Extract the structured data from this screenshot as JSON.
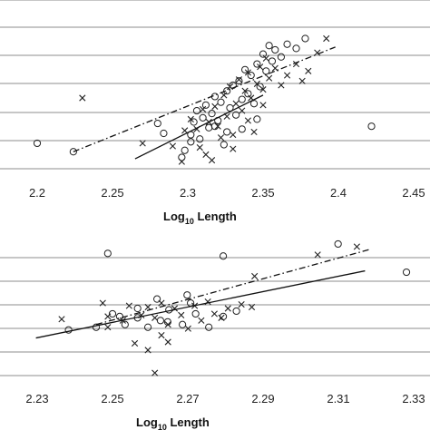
{
  "chart_data": [
    {
      "type": "scatter",
      "xlabel_main": "Log",
      "xlabel_sub": "10",
      "xlabel_rest": " Length",
      "xlim": [
        2.2,
        2.45
      ],
      "x_ticks": [
        "2.2",
        "2.25",
        "2.3",
        "2.35",
        "2.4",
        "2.45"
      ],
      "grid": "horizontal",
      "series": [
        {
          "marker": "circle",
          "points": [
            [
              2.2,
              0.18
            ],
            [
              2.224,
              0.12
            ],
            [
              2.28,
              0.32
            ],
            [
              2.284,
              0.25
            ],
            [
              2.296,
              0.08
            ],
            [
              2.298,
              0.13
            ],
            [
              2.302,
              0.24
            ],
            [
              2.304,
              0.33
            ],
            [
              2.306,
              0.41
            ],
            [
              2.308,
              0.21
            ],
            [
              2.31,
              0.36
            ],
            [
              2.312,
              0.45
            ],
            [
              2.314,
              0.29
            ],
            [
              2.316,
              0.39
            ],
            [
              2.318,
              0.51
            ],
            [
              2.32,
              0.34
            ],
            [
              2.322,
              0.47
            ],
            [
              2.324,
              0.17
            ],
            [
              2.326,
              0.55
            ],
            [
              2.328,
              0.43
            ],
            [
              2.33,
              0.59
            ],
            [
              2.332,
              0.38
            ],
            [
              2.334,
              0.62
            ],
            [
              2.336,
              0.49
            ],
            [
              2.338,
              0.7
            ],
            [
              2.34,
              0.53
            ],
            [
              2.342,
              0.66
            ],
            [
              2.344,
              0.46
            ],
            [
              2.346,
              0.74
            ],
            [
              2.348,
              0.58
            ],
            [
              2.35,
              0.81
            ],
            [
              2.352,
              0.69
            ],
            [
              2.354,
              0.87
            ],
            [
              2.356,
              0.76
            ],
            [
              2.358,
              0.84
            ],
            [
              2.362,
              0.79
            ],
            [
              2.366,
              0.88
            ],
            [
              2.372,
              0.85
            ],
            [
              2.378,
              0.92
            ],
            [
              2.318,
              0.3
            ],
            [
              2.336,
              0.28
            ],
            [
              2.346,
              0.35
            ],
            [
              2.302,
              0.19
            ],
            [
              2.326,
              0.26
            ],
            [
              2.422,
              0.3
            ]
          ]
        },
        {
          "marker": "x",
          "points": [
            [
              2.23,
              0.5
            ],
            [
              2.27,
              0.18
            ],
            [
              2.29,
              0.16
            ],
            [
              2.298,
              0.27
            ],
            [
              2.302,
              0.35
            ],
            [
              2.306,
              0.28
            ],
            [
              2.31,
              0.42
            ],
            [
              2.312,
              0.1
            ],
            [
              2.314,
              0.33
            ],
            [
              2.318,
              0.44
            ],
            [
              2.32,
              0.3
            ],
            [
              2.324,
              0.52
            ],
            [
              2.326,
              0.37
            ],
            [
              2.328,
              0.58
            ],
            [
              2.33,
              0.24
            ],
            [
              2.332,
              0.46
            ],
            [
              2.334,
              0.63
            ],
            [
              2.336,
              0.41
            ],
            [
              2.338,
              0.55
            ],
            [
              2.34,
              0.68
            ],
            [
              2.342,
              0.5
            ],
            [
              2.344,
              0.26
            ],
            [
              2.346,
              0.6
            ],
            [
              2.348,
              0.72
            ],
            [
              2.35,
              0.56
            ],
            [
              2.352,
              0.78
            ],
            [
              2.354,
              0.64
            ],
            [
              2.358,
              0.71
            ],
            [
              2.362,
              0.59
            ],
            [
              2.366,
              0.66
            ],
            [
              2.372,
              0.74
            ],
            [
              2.376,
              0.62
            ],
            [
              2.38,
              0.69
            ],
            [
              2.386,
              0.82
            ],
            [
              2.392,
              0.92
            ],
            [
              2.296,
              0.05
            ],
            [
              2.308,
              0.15
            ],
            [
              2.322,
              0.22
            ],
            [
              2.33,
              0.14
            ],
            [
              2.316,
              0.06
            ],
            [
              2.34,
              0.34
            ],
            [
              2.35,
              0.45
            ]
          ]
        }
      ],
      "fit_lines": [
        {
          "style": "solid",
          "from": [
            2.265,
            0.07
          ],
          "to": [
            2.35,
            0.52
          ]
        },
        {
          "style": "dash-dot",
          "from": [
            2.224,
            0.12
          ],
          "to": [
            2.398,
            0.86
          ]
        }
      ]
    },
    {
      "type": "scatter",
      "xlabel_main": "Log",
      "xlabel_sub": "10",
      "xlabel_rest": " Length",
      "xlim": [
        2.22,
        2.34
      ],
      "x_ticks": [
        "2.23",
        "2.25",
        "2.27",
        "2.29",
        "2.31",
        "2.33"
      ],
      "grid": "horizontal",
      "series": [
        {
          "marker": "circle",
          "points": [
            [
              2.2425,
              0.91
            ],
            [
              2.2793,
              0.89
            ],
            [
              2.3159,
              0.98
            ],
            [
              2.3377,
              0.77
            ],
            [
              2.23,
              0.34
            ],
            [
              2.2388,
              0.36
            ],
            [
              2.244,
              0.46
            ],
            [
              2.248,
              0.38
            ],
            [
              2.252,
              0.43
            ],
            [
              2.2553,
              0.36
            ],
            [
              2.2593,
              0.41
            ],
            [
              2.262,
              0.49
            ],
            [
              2.2663,
              0.38
            ],
            [
              2.2705,
              0.46
            ],
            [
              2.2747,
              0.36
            ],
            [
              2.2793,
              0.44
            ],
            [
              2.2835,
              0.48
            ],
            [
              2.2582,
              0.57
            ],
            [
              2.2689,
              0.54
            ],
            [
              2.2678,
              0.6
            ],
            [
              2.252,
              0.5
            ],
            [
              2.2463,
              0.44
            ],
            [
              2.2616,
              0.4
            ]
          ]
        },
        {
          "marker": "x",
          "points": [
            [
              2.2278,
              0.42
            ],
            [
              2.2409,
              0.54
            ],
            [
              2.2425,
              0.44
            ],
            [
              2.2473,
              0.41
            ],
            [
              2.2493,
              0.52
            ],
            [
              2.2511,
              0.24
            ],
            [
              2.2532,
              0.45
            ],
            [
              2.2553,
              0.51
            ],
            [
              2.2575,
              0.43
            ],
            [
              2.2596,
              0.54
            ],
            [
              2.2617,
              0.38
            ],
            [
              2.2638,
              0.5
            ],
            [
              2.2659,
              0.45
            ],
            [
              2.2681,
              0.35
            ],
            [
              2.2702,
              0.52
            ],
            [
              2.2723,
              0.41
            ],
            [
              2.2744,
              0.55
            ],
            [
              2.2765,
              0.46
            ],
            [
              2.2787,
              0.43
            ],
            [
              2.2808,
              0.5
            ],
            [
              2.2851,
              0.53
            ],
            [
              2.2884,
              0.51
            ],
            [
              2.3094,
              0.9
            ],
            [
              2.3219,
              0.96
            ],
            [
              2.2893,
              0.74
            ],
            [
              2.2553,
              0.19
            ],
            [
              2.2575,
              0.02
            ],
            [
              2.2596,
              0.3
            ],
            [
              2.2617,
              0.25
            ],
            [
              2.2425,
              0.36
            ]
          ]
        }
      ],
      "fit_lines": [
        {
          "style": "solid",
          "from": [
            2.2196,
            0.28
          ],
          "to": [
            2.3245,
            0.78
          ]
        },
        {
          "style": "dash-dot",
          "from": [
            2.2388,
            0.38
          ],
          "to": [
            2.3261,
            0.94
          ]
        }
      ]
    }
  ]
}
